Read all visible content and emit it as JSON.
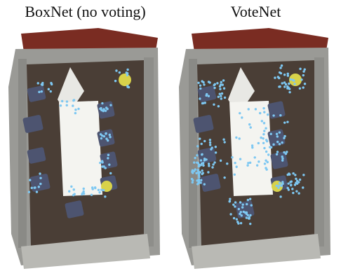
{
  "figure": {
    "panels": [
      {
        "title": "BoxNet (no voting)"
      },
      {
        "title": "VoteNet"
      }
    ]
  },
  "colors": {
    "floor": "#4a3e36",
    "wall": "#9a9a96",
    "wall_top": "#7a2c22",
    "table": "#f4f4f0",
    "chair": "#4d5470",
    "seed_point": "#7ec8f2",
    "lamp": "#d8d24a"
  }
}
